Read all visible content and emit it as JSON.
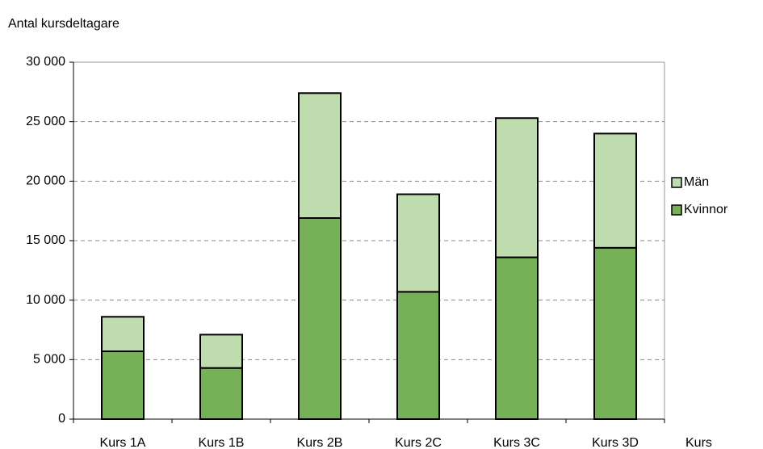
{
  "chart_data": {
    "type": "stacked-bar",
    "y_label": "Antal kursdeltagare",
    "x_label": "Kurs",
    "categories": [
      "Kurs 1A",
      "Kurs 1B",
      "Kurs 2B",
      "Kurs 2C",
      "Kurs 3C",
      "Kurs 3D"
    ],
    "series": [
      {
        "name": "Kvinnor",
        "color": "#77b157",
        "values": [
          5700,
          4300,
          16900,
          10700,
          13600,
          14400
        ]
      },
      {
        "name": "Män",
        "color": "#bfdcae",
        "values": [
          2900,
          2800,
          10500,
          8200,
          11700,
          9600
        ]
      }
    ],
    "ylim": [
      0,
      30000
    ],
    "yticks": [
      0,
      {
        "value": 5000,
        "label": "5 000"
      },
      {
        "value": 10000,
        "label": "10 000"
      },
      {
        "value": 15000,
        "label": "15 000"
      },
      {
        "value": 20000,
        "label": "20 000"
      },
      {
        "value": 25000,
        "label": "25 000"
      },
      {
        "value": 30000,
        "label": "30 000"
      }
    ],
    "grid": true,
    "legend": "right"
  }
}
